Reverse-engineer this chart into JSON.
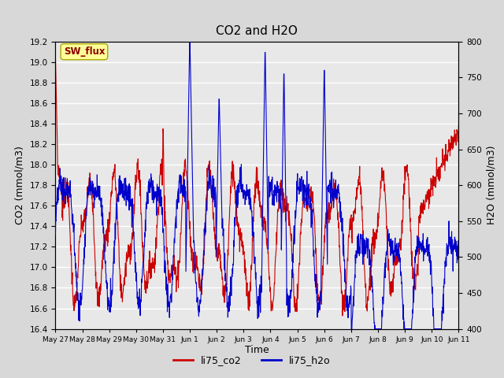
{
  "title": "CO2 and H2O",
  "xlabel": "Time",
  "ylabel_left": "CO2 (mmol/m3)",
  "ylabel_right": "H2O (mmol/m3)",
  "legend_label_co2": "li75_co2",
  "legend_label_h2o": "li75_h2o",
  "co2_color": "#cc0000",
  "h2o_color": "#0000cc",
  "co2_ylim": [
    16.4,
    19.2
  ],
  "h2o_ylim": [
    400,
    800
  ],
  "background_color": "#d8d8d8",
  "plot_bg_color": "#e8e8e8",
  "grid_color": "#ffffff",
  "sw_flux_box_color": "#ffff99",
  "sw_flux_text_color": "#8b0000",
  "xtick_labels": [
    "May 27",
    "May 28",
    "May 29",
    "May 30",
    "May 31",
    "Jun 1",
    "Jun 2",
    "Jun 3",
    "Jun 4",
    "Jun 5",
    "Jun 6",
    "Jun 7",
    "Jun 8",
    "Jun 9",
    "Jun 10",
    "Jun 11"
  ],
  "co2_yticks": [
    16.4,
    16.6,
    16.8,
    17.0,
    17.2,
    17.4,
    17.6,
    17.8,
    18.0,
    18.2,
    18.4,
    18.6,
    18.8,
    19.0,
    19.2
  ],
  "h2o_yticks": [
    400,
    450,
    500,
    550,
    600,
    650,
    700,
    750,
    800
  ]
}
